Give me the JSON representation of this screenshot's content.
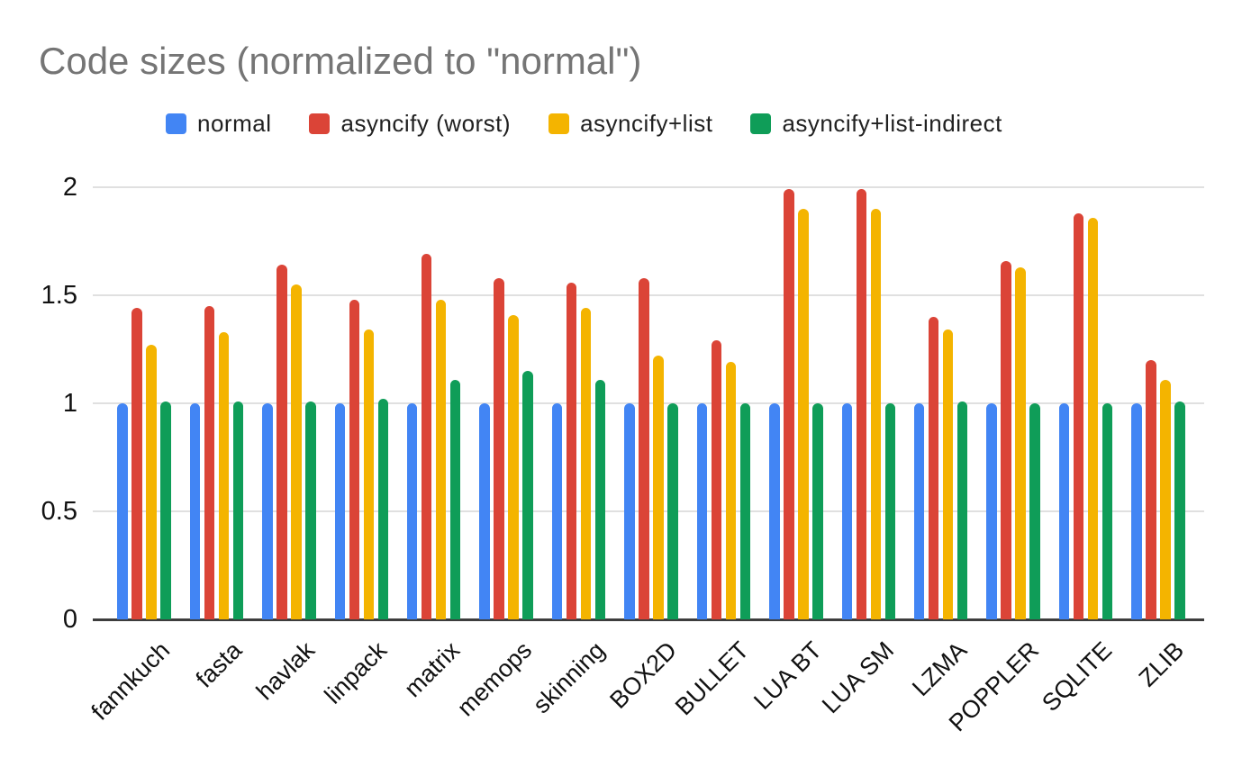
{
  "styles": {
    "background": "#ffffff",
    "title_color": "#757575",
    "axis_text_color": "#111111",
    "legend_text_color": "#212121",
    "gridline_color": "#e0e0e0",
    "baseline_color": "#3d3d3d"
  },
  "chart_data": {
    "type": "bar",
    "title": "Code sizes (normalized to \"normal\")",
    "xlabel": "",
    "ylabel": "",
    "ylim": [
      0,
      2
    ],
    "grid": true,
    "legend_position": "top",
    "yticks": [
      {
        "value": 2,
        "label": "2"
      },
      {
        "value": 1.5,
        "label": "1.5"
      },
      {
        "value": 1,
        "label": "1"
      },
      {
        "value": 0.5,
        "label": "0.5"
      },
      {
        "value": 0,
        "label": "0"
      }
    ],
    "categories": [
      "fannkuch",
      "fasta",
      "havlak",
      "linpack",
      "matrix",
      "memops",
      "skinning",
      "BOX2D",
      "BULLET",
      "LUA BT",
      "LUA SM",
      "LZMA",
      "POPPLER",
      "SQLITE",
      "ZLIB"
    ],
    "series": [
      {
        "name": "normal",
        "color": "#4285F4",
        "values": [
          1.0,
          1.0,
          1.0,
          1.0,
          1.0,
          1.0,
          1.0,
          1.0,
          1.0,
          1.0,
          1.0,
          1.0,
          1.0,
          1.0,
          1.0
        ]
      },
      {
        "name": "asyncify (worst)",
        "color": "#DB4437",
        "values": [
          1.44,
          1.45,
          1.64,
          1.48,
          1.69,
          1.58,
          1.56,
          1.58,
          1.29,
          1.99,
          1.99,
          1.4,
          1.66,
          1.88,
          1.2
        ]
      },
      {
        "name": "asyncify+list",
        "color": "#F4B400",
        "values": [
          1.27,
          1.33,
          1.55,
          1.34,
          1.48,
          1.41,
          1.44,
          1.22,
          1.19,
          1.9,
          1.9,
          1.34,
          1.63,
          1.86,
          1.11
        ]
      },
      {
        "name": "asyncify+list-indirect",
        "color": "#0F9D58",
        "values": [
          1.01,
          1.01,
          1.01,
          1.02,
          1.11,
          1.15,
          1.11,
          1.0,
          1.0,
          1.0,
          1.0,
          1.01,
          1.0,
          1.0,
          1.01
        ]
      }
    ]
  }
}
